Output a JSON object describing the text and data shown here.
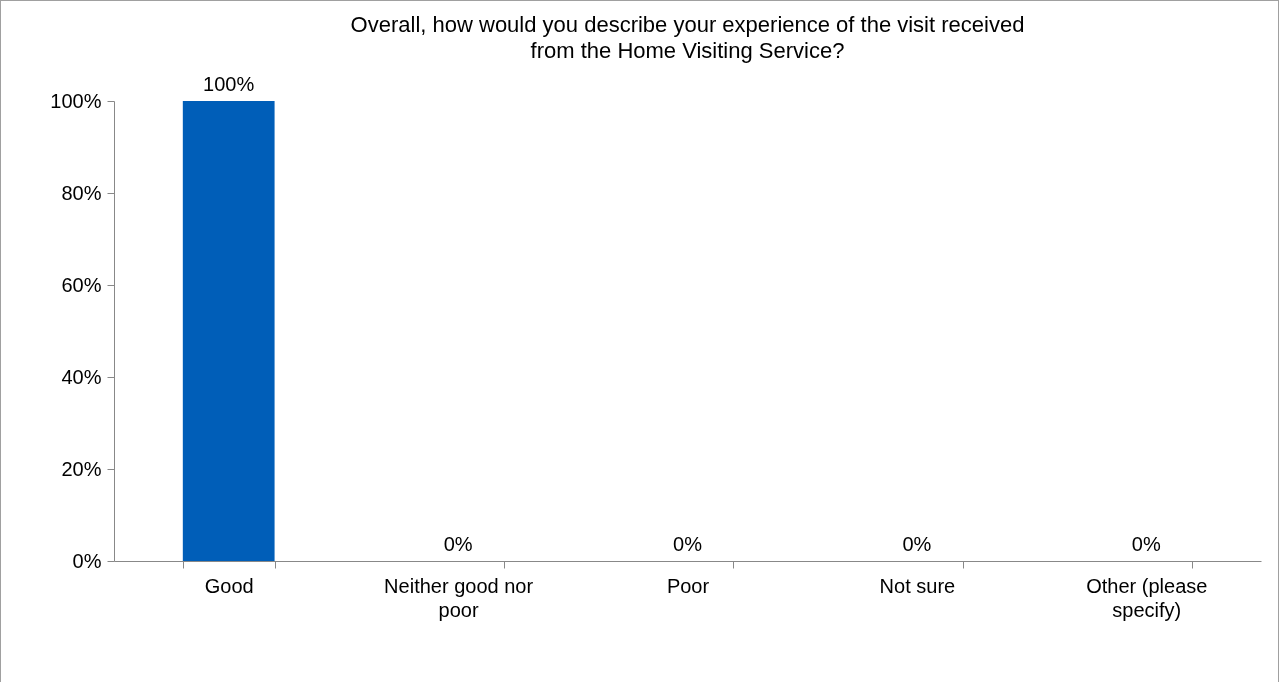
{
  "chart_data": {
    "type": "bar",
    "title": "Overall, how would you describe your experience of the visit received from the Home Visiting Service?",
    "categories": [
      "Good",
      "Neither good nor poor",
      "Poor",
      "Not sure",
      "Other (please specify)"
    ],
    "values": [
      100,
      0,
      0,
      0,
      0
    ],
    "value_labels": [
      "100%",
      "0%",
      "0%",
      "0%",
      "0%"
    ],
    "color": "#005eb8",
    "ylim": [
      0,
      100
    ],
    "yticks": [
      {
        "value": 0,
        "label": "0%"
      },
      {
        "value": 20,
        "label": "20%"
      },
      {
        "value": 40,
        "label": "40%"
      },
      {
        "value": 60,
        "label": "60%"
      },
      {
        "value": 80,
        "label": "80%"
      },
      {
        "value": 100,
        "label": "100%"
      }
    ],
    "grid": false
  }
}
